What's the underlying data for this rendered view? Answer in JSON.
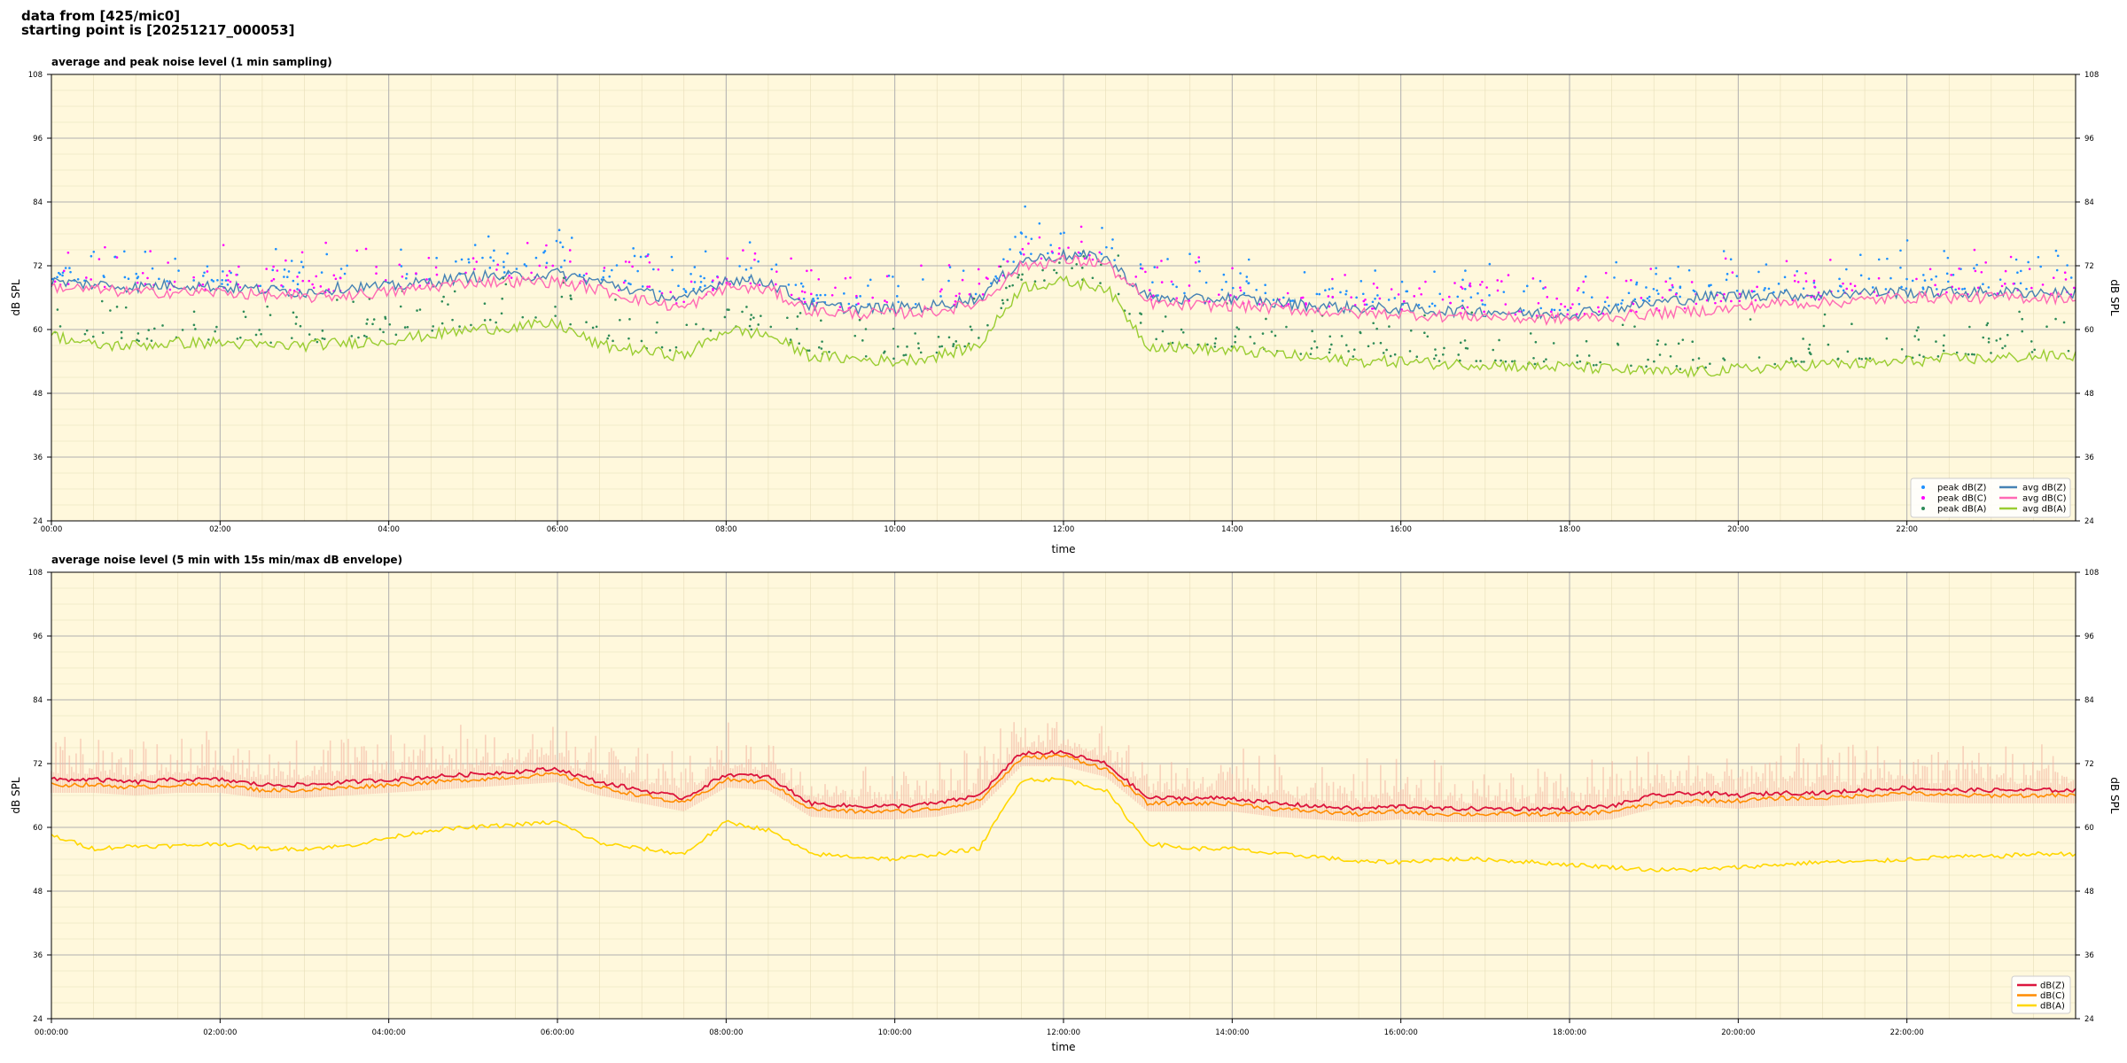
{
  "header": {
    "line1": "data from [425/mic0]",
    "line2": "starting point is [20251217_000053]"
  },
  "colors": {
    "panel_bg": "#fff8dc",
    "grid": "#b0b0b0",
    "peak_z": "#1e90ff",
    "peak_c": "#ff00ff",
    "peak_a": "#2e8b57",
    "avg_z": "#4682b4",
    "avg_c": "#ff69b4",
    "avg_a": "#9acd32",
    "env_z": "#dc143c",
    "env_c": "#ff8c00",
    "env_a": "#ffd700",
    "envelope_fill": "#f4b8a4"
  },
  "chart_data": [
    {
      "type": "line",
      "title": "average and peak noise level (1 min sampling)",
      "xlabel": "time",
      "ylabel": "dB SPL",
      "ylim": [
        24,
        108
      ],
      "xlim_hours": [
        0,
        24
      ],
      "yticks": [
        24,
        36,
        48,
        60,
        72,
        84,
        96,
        108
      ],
      "xtick_labels": [
        "00:00",
        "02:00",
        "04:00",
        "06:00",
        "08:00",
        "10:00",
        "12:00",
        "14:00",
        "16:00",
        "18:00",
        "20:00",
        "22:00"
      ],
      "grid": true,
      "legend_position": "bottom-right",
      "legend": [
        "peak dB(Z)",
        "peak dB(C)",
        "peak dB(A)",
        "avg dB(Z)",
        "avg dB(C)",
        "avg dB(A)"
      ],
      "series": [
        {
          "name": "avg dB(Z)",
          "x_hours": [
            0,
            0.5,
            1,
            1.5,
            2,
            2.5,
            3,
            3.5,
            4,
            4.5,
            5,
            5.5,
            6,
            6.5,
            7,
            7.5,
            8,
            8.5,
            9,
            9.5,
            10,
            10.5,
            11,
            11.5,
            12,
            12.5,
            13,
            13.5,
            14,
            14.5,
            15,
            15.5,
            16,
            16.5,
            17,
            17.5,
            18,
            18.5,
            19,
            19.5,
            20,
            20.5,
            21,
            21.5,
            22,
            22.5,
            23,
            23.5,
            24
          ],
          "values": [
            69,
            68.5,
            68,
            68.5,
            68,
            67.5,
            67,
            68,
            68,
            69,
            70,
            70,
            70.5,
            69,
            67,
            65.5,
            69.5,
            69,
            64.5,
            64,
            64,
            64.5,
            66,
            73,
            74,
            73.5,
            66,
            65.5,
            66,
            65,
            64.5,
            64,
            64,
            63.5,
            63.5,
            63,
            63,
            64,
            65,
            66,
            66.5,
            66.5,
            66.5,
            67,
            67,
            67,
            67,
            67,
            67
          ]
        },
        {
          "name": "avg dB(C)",
          "x_hours": [
            0,
            0.5,
            1,
            1.5,
            2,
            2.5,
            3,
            3.5,
            4,
            4.5,
            5,
            5.5,
            6,
            6.5,
            7,
            7.5,
            8,
            8.5,
            9,
            9.5,
            10,
            10.5,
            11,
            11.5,
            12,
            12.5,
            13,
            13.5,
            14,
            14.5,
            15,
            15.5,
            16,
            16.5,
            17,
            17.5,
            18,
            18.5,
            19,
            19.5,
            20,
            20.5,
            21,
            21.5,
            22,
            22.5,
            23,
            23.5,
            24
          ],
          "values": [
            68,
            67.5,
            67,
            67,
            67,
            66.5,
            66,
            66.5,
            67,
            68,
            69,
            69,
            69,
            67.5,
            65.5,
            64,
            68,
            67.5,
            63.5,
            63,
            63,
            63.5,
            65,
            72,
            73,
            72.5,
            65,
            64.5,
            64.5,
            64,
            63.5,
            63,
            63,
            62.5,
            62.5,
            62,
            62,
            62.5,
            63,
            63.5,
            64,
            65,
            65,
            65.5,
            66,
            66,
            66,
            66,
            66
          ]
        },
        {
          "name": "avg dB(A)",
          "x_hours": [
            0,
            0.5,
            1,
            1.5,
            2,
            2.5,
            3,
            3.5,
            4,
            4.5,
            5,
            5.5,
            6,
            6.5,
            7,
            7.5,
            8,
            8.5,
            9,
            9.5,
            10,
            10.5,
            11,
            11.5,
            12,
            12.5,
            13,
            13.5,
            14,
            14.5,
            15,
            15.5,
            16,
            16.5,
            17,
            17.5,
            18,
            18.5,
            19,
            19.5,
            20,
            20.5,
            21,
            21.5,
            22,
            22.5,
            23,
            23.5,
            24
          ],
          "values": [
            59,
            57,
            57,
            57.5,
            57.5,
            57,
            57,
            57.5,
            58,
            59,
            60,
            60.5,
            61,
            57,
            56,
            55,
            60,
            59,
            55,
            54.5,
            54,
            55,
            57,
            68,
            69,
            68,
            57,
            56.5,
            56,
            55.5,
            54.5,
            54,
            54,
            53.5,
            53.5,
            53,
            53,
            52.5,
            52,
            52,
            52.5,
            53,
            53.5,
            53.5,
            54,
            54.5,
            54.5,
            55,
            55
          ]
        }
      ]
    },
    {
      "type": "line",
      "title": "average noise level (5 min with 15s min/max dB envelope)",
      "xlabel": "time",
      "ylabel": "dB SPL",
      "ylim": [
        24,
        108
      ],
      "xlim_hours": [
        0,
        24
      ],
      "yticks": [
        24,
        36,
        48,
        60,
        72,
        84,
        96,
        108
      ],
      "xtick_labels": [
        "00:00:00",
        "02:00:00",
        "04:00:00",
        "06:00:00",
        "08:00:00",
        "10:00:00",
        "12:00:00",
        "14:00:00",
        "16:00:00",
        "18:00:00",
        "20:00:00",
        "22:00:00"
      ],
      "grid": true,
      "legend_position": "bottom-right",
      "legend": [
        "dB(Z)",
        "dB(C)",
        "dB(A)"
      ],
      "series": [
        {
          "name": "dB(Z)",
          "x_hours": [
            0,
            0.5,
            1,
            1.5,
            2,
            2.5,
            3,
            3.5,
            4,
            4.5,
            5,
            5.5,
            6,
            6.5,
            7,
            7.5,
            8,
            8.5,
            9,
            9.5,
            10,
            10.5,
            11,
            11.5,
            12,
            12.5,
            13,
            13.5,
            14,
            14.5,
            15,
            15.5,
            16,
            16.5,
            17,
            17.5,
            18,
            18.5,
            19,
            19.5,
            20,
            20.5,
            21,
            21.5,
            22,
            22.5,
            23,
            23.5,
            24
          ],
          "values": [
            69,
            69,
            68.5,
            69,
            69,
            68,
            68,
            68.5,
            69,
            69.5,
            70,
            70.5,
            71,
            68.5,
            67,
            65.5,
            70,
            69.5,
            64.5,
            64,
            64,
            64.5,
            66,
            74,
            74,
            72,
            65.5,
            65.5,
            65.5,
            64.5,
            64,
            63.5,
            64,
            63.5,
            63.5,
            63.5,
            63.5,
            64,
            66,
            66.5,
            66,
            66.5,
            66.5,
            67,
            67.5,
            67,
            67,
            67,
            67
          ]
        },
        {
          "name": "dB(C)",
          "x_hours": [
            0,
            0.5,
            1,
            1.5,
            2,
            2.5,
            3,
            3.5,
            4,
            4.5,
            5,
            5.5,
            6,
            6.5,
            7,
            7.5,
            8,
            8.5,
            9,
            9.5,
            10,
            10.5,
            11,
            11.5,
            12,
            12.5,
            13,
            13.5,
            14,
            14.5,
            15,
            15.5,
            16,
            16.5,
            17,
            17.5,
            18,
            18.5,
            19,
            19.5,
            20,
            20.5,
            21,
            21.5,
            22,
            22.5,
            23,
            23.5,
            24
          ],
          "values": [
            68,
            68,
            67.5,
            68,
            68,
            67,
            67,
            67.5,
            68,
            68.5,
            69,
            69.5,
            70,
            67.5,
            66,
            64.5,
            69,
            68.5,
            63.5,
            63,
            63,
            63.5,
            65,
            73,
            73.5,
            71,
            64.5,
            64.5,
            64.5,
            63.5,
            63,
            62.5,
            63,
            62.5,
            62.5,
            62.5,
            62.5,
            63,
            64.5,
            65,
            65,
            65.5,
            65.5,
            66,
            66.5,
            66,
            66,
            66,
            66
          ]
        },
        {
          "name": "dB(A)",
          "x_hours": [
            0,
            0.5,
            1,
            1.5,
            2,
            2.5,
            3,
            3.5,
            4,
            4.5,
            5,
            5.5,
            6,
            6.5,
            7,
            7.5,
            8,
            8.5,
            9,
            9.5,
            10,
            10.5,
            11,
            11.5,
            12,
            12.5,
            13,
            13.5,
            14,
            14.5,
            15,
            15.5,
            16,
            16.5,
            17,
            17.5,
            18,
            18.5,
            19,
            19.5,
            20,
            20.5,
            21,
            21.5,
            22,
            22.5,
            23,
            23.5,
            24
          ],
          "values": [
            58.5,
            56,
            56.5,
            56.5,
            57,
            56,
            56,
            56.5,
            58,
            59.5,
            60,
            60.5,
            61,
            57,
            56,
            55,
            61,
            59.5,
            55,
            54.5,
            54,
            55,
            56,
            69,
            69,
            67,
            57,
            56,
            56,
            55,
            54.5,
            53.5,
            53.5,
            54,
            54,
            53.5,
            53,
            52.5,
            52,
            52,
            52.5,
            53,
            53.5,
            53.5,
            54,
            54.5,
            54.5,
            55,
            55
          ]
        }
      ]
    }
  ]
}
